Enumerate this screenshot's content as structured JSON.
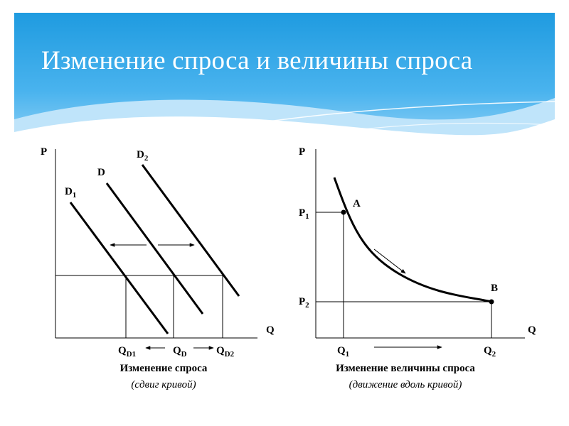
{
  "slide": {
    "title": "Изменение спроса и величины спроса"
  },
  "left_chart": {
    "y_label": "P",
    "x_label": "Q",
    "curves": [
      {
        "name": "D",
        "sub": "1"
      },
      {
        "name": "D",
        "sub": ""
      },
      {
        "name": "D",
        "sub": "2"
      }
    ],
    "x_ticks": [
      {
        "name": "Q",
        "sub": "D1"
      },
      {
        "name": "Q",
        "sub": "D"
      },
      {
        "name": "Q",
        "sub": "D2"
      }
    ],
    "caption": "Изменение спроса",
    "subcaption": "(сдвиг кривой)"
  },
  "right_chart": {
    "y_label": "P",
    "x_label": "Q",
    "points": [
      {
        "label": "A",
        "q": "Q",
        "q_sub": "1",
        "p": "P",
        "p_sub": "1"
      },
      {
        "label": "B",
        "q": "Q",
        "q_sub": "2",
        "p": "P",
        "p_sub": "2"
      }
    ],
    "caption": "Изменение величины спроса",
    "subcaption": "(движение вдоль кривой)"
  }
}
